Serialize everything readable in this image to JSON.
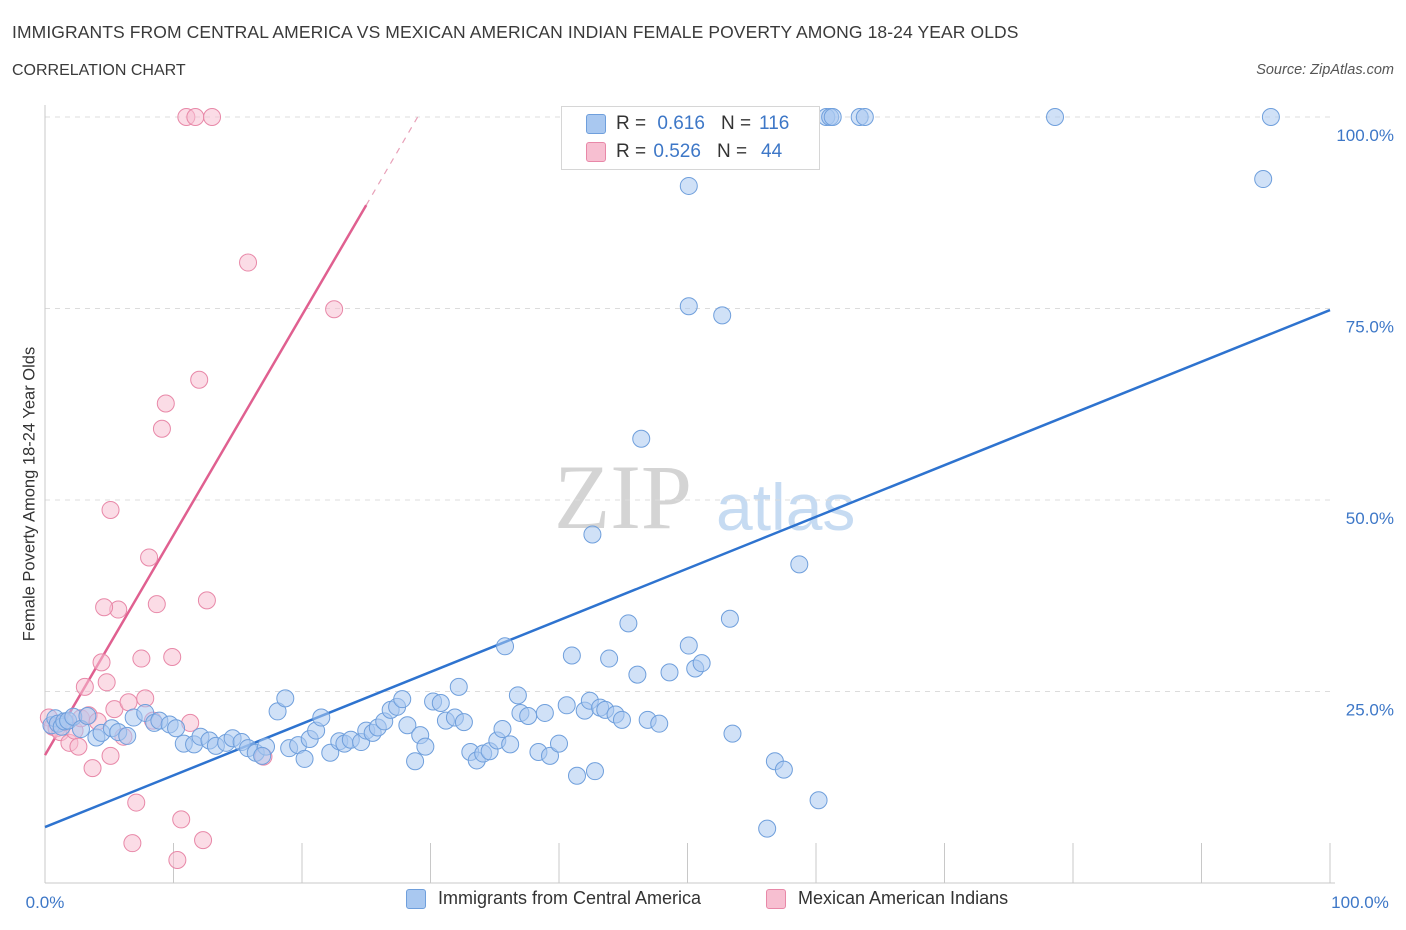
{
  "header": {
    "title": "IMMIGRANTS FROM CENTRAL AMERICA VS MEXICAN AMERICAN INDIAN FEMALE POVERTY AMONG 18-24 YEAR OLDS",
    "subtitle": "CORRELATION CHART",
    "source": "Source: ZipAtlas.com"
  },
  "watermark": {
    "zip": "ZIP",
    "atlas": "atlas"
  },
  "legend": {
    "rows": [
      {
        "r_label": "R =",
        "r_value": "0.616",
        "n_label": "N =",
        "n_value": "116",
        "color": "#a9c8f0",
        "border": "#6f9fdc"
      },
      {
        "r_label": "R =",
        "r_value": "0.526",
        "n_label": "N =",
        "n_value": "44",
        "color": "#f7bfd1",
        "border": "#e888a8"
      }
    ]
  },
  "bottom_legend": {
    "series1": "Immigrants from Central America",
    "series2": "Mexican American Indians"
  },
  "chart_data": {
    "type": "scatter",
    "title": "IMMIGRANTS FROM CENTRAL AMERICA VS MEXICAN AMERICAN INDIAN FEMALE POVERTY AMONG 18-24 YEAR OLDS",
    "xlabel": "",
    "ylabel": "Female Poverty Among 18-24 Year Olds",
    "xlim": [
      0,
      100
    ],
    "ylim": [
      0,
      100
    ],
    "x_tick_labels": [
      "0.0%",
      "100.0%"
    ],
    "y_tick_labels": [
      {
        "value": 25,
        "label": "25.0%"
      },
      {
        "value": 50,
        "label": "50.0%"
      },
      {
        "value": 75,
        "label": "75.0%"
      },
      {
        "value": 100,
        "label": "100.0%"
      }
    ],
    "grid": true,
    "series": [
      {
        "name": "Immigrants from Central America",
        "color": "#6f9fdc",
        "fill": "#a9c8f0",
        "trendline": {
          "x0": 0,
          "y0": 7.3,
          "x1": 100,
          "y1": 74.8,
          "color": "#2e73cf"
        },
        "points": [
          [
            0.5,
            20.6
          ],
          [
            0.8,
            21.5
          ],
          [
            1.0,
            20.8
          ],
          [
            1.3,
            20.4
          ],
          [
            1.5,
            21.1
          ],
          [
            1.8,
            21.2
          ],
          [
            2.2,
            21.7
          ],
          [
            2.8,
            20.1
          ],
          [
            3.3,
            21.8
          ],
          [
            4.0,
            19.0
          ],
          [
            4.4,
            19.6
          ],
          [
            5.2,
            20.2
          ],
          [
            5.7,
            19.7
          ],
          [
            6.4,
            19.2
          ],
          [
            6.9,
            21.6
          ],
          [
            7.8,
            22.2
          ],
          [
            8.5,
            20.9
          ],
          [
            8.9,
            21.2
          ],
          [
            9.7,
            20.7
          ],
          [
            10.2,
            20.2
          ],
          [
            10.8,
            18.2
          ],
          [
            11.6,
            18.1
          ],
          [
            12.1,
            19.1
          ],
          [
            12.8,
            18.6
          ],
          [
            13.3,
            17.9
          ],
          [
            14.1,
            18.3
          ],
          [
            14.6,
            18.9
          ],
          [
            15.3,
            18.4
          ],
          [
            15.8,
            17.6
          ],
          [
            16.4,
            17.0
          ],
          [
            17.2,
            17.8
          ],
          [
            16.9,
            16.6
          ],
          [
            18.1,
            22.4
          ],
          [
            18.7,
            24.1
          ],
          [
            19.0,
            17.6
          ],
          [
            19.7,
            18.0
          ],
          [
            20.2,
            16.2
          ],
          [
            20.6,
            18.8
          ],
          [
            21.1,
            19.9
          ],
          [
            21.5,
            21.6
          ],
          [
            22.2,
            17.0
          ],
          [
            22.9,
            18.5
          ],
          [
            23.3,
            18.2
          ],
          [
            23.8,
            18.7
          ],
          [
            24.6,
            18.4
          ],
          [
            25.0,
            19.9
          ],
          [
            25.5,
            19.6
          ],
          [
            25.9,
            20.3
          ],
          [
            26.4,
            21.1
          ],
          [
            26.9,
            22.6
          ],
          [
            27.4,
            23.0
          ],
          [
            27.8,
            24.0
          ],
          [
            28.2,
            20.6
          ],
          [
            28.8,
            15.9
          ],
          [
            29.2,
            19.3
          ],
          [
            29.6,
            17.8
          ],
          [
            30.2,
            23.7
          ],
          [
            30.8,
            23.5
          ],
          [
            31.2,
            21.2
          ],
          [
            31.9,
            21.6
          ],
          [
            32.2,
            25.6
          ],
          [
            32.6,
            21.0
          ],
          [
            33.1,
            17.1
          ],
          [
            33.6,
            16.0
          ],
          [
            34.1,
            16.9
          ],
          [
            34.6,
            17.2
          ],
          [
            35.2,
            18.6
          ],
          [
            35.6,
            20.1
          ],
          [
            36.2,
            18.1
          ],
          [
            36.8,
            24.5
          ],
          [
            37.0,
            22.2
          ],
          [
            35.8,
            30.9
          ],
          [
            37.6,
            21.8
          ],
          [
            38.4,
            17.1
          ],
          [
            38.9,
            22.2
          ],
          [
            39.3,
            16.6
          ],
          [
            40.0,
            18.2
          ],
          [
            40.6,
            23.2
          ],
          [
            41.0,
            29.7
          ],
          [
            41.4,
            14.0
          ],
          [
            42.0,
            22.5
          ],
          [
            42.4,
            23.8
          ],
          [
            42.8,
            14.6
          ],
          [
            43.2,
            22.9
          ],
          [
            43.6,
            22.6
          ],
          [
            43.9,
            29.3
          ],
          [
            44.4,
            22.0
          ],
          [
            44.9,
            21.3
          ],
          [
            45.4,
            33.9
          ],
          [
            46.1,
            27.2
          ],
          [
            46.9,
            21.3
          ],
          [
            47.8,
            20.8
          ],
          [
            48.6,
            27.5
          ],
          [
            50.1,
            31.0
          ],
          [
            50.6,
            28.0
          ],
          [
            51.1,
            28.7
          ],
          [
            53.3,
            34.5
          ],
          [
            53.5,
            19.5
          ],
          [
            56.2,
            7.1
          ],
          [
            56.8,
            15.9
          ],
          [
            57.5,
            14.8
          ],
          [
            58.7,
            41.6
          ],
          [
            60.2,
            10.8
          ],
          [
            50.1,
            75.3
          ],
          [
            52.7,
            74.1
          ],
          [
            46.4,
            58.0
          ],
          [
            42.6,
            45.5
          ],
          [
            50.1,
            91.0
          ],
          [
            60.8,
            100.0
          ],
          [
            61.1,
            100.0
          ],
          [
            63.4,
            100.0
          ],
          [
            61.3,
            100.0
          ],
          [
            78.6,
            100.0
          ],
          [
            95.4,
            100.0
          ],
          [
            94.8,
            91.9
          ],
          [
            63.8,
            100.0
          ]
        ]
      },
      {
        "name": "Mexican American Indians",
        "color": "#e888a8",
        "fill": "#f7bfd1",
        "trendline": {
          "x0": 0,
          "y0": 16.7,
          "x1": 25,
          "y1": 88.5,
          "dash_to": {
            "x": 29,
            "y": 100
          },
          "color": "#e06090"
        },
        "points": [
          [
            0.3,
            21.6
          ],
          [
            0.6,
            20.4
          ],
          [
            0.9,
            20.2
          ],
          [
            1.2,
            19.7
          ],
          [
            1.6,
            21.0
          ],
          [
            1.9,
            18.3
          ],
          [
            2.3,
            19.9
          ],
          [
            2.6,
            17.8
          ],
          [
            2.8,
            21.5
          ],
          [
            3.1,
            25.6
          ],
          [
            3.4,
            21.9
          ],
          [
            3.7,
            15.0
          ],
          [
            4.1,
            21.1
          ],
          [
            4.4,
            28.8
          ],
          [
            4.8,
            26.2
          ],
          [
            5.1,
            16.6
          ],
          [
            5.4,
            22.7
          ],
          [
            5.7,
            35.7
          ],
          [
            6.1,
            19.1
          ],
          [
            6.5,
            23.6
          ],
          [
            6.8,
            5.2
          ],
          [
            7.1,
            10.5
          ],
          [
            7.5,
            29.3
          ],
          [
            7.8,
            24.1
          ],
          [
            8.1,
            42.5
          ],
          [
            8.4,
            21.2
          ],
          [
            8.7,
            36.4
          ],
          [
            9.1,
            59.3
          ],
          [
            9.4,
            62.6
          ],
          [
            9.9,
            29.5
          ],
          [
            10.3,
            3.0
          ],
          [
            10.6,
            8.3
          ],
          [
            11.0,
            100.0
          ],
          [
            11.3,
            20.9
          ],
          [
            11.7,
            100.0
          ],
          [
            12.0,
            65.7
          ],
          [
            12.3,
            5.6
          ],
          [
            12.6,
            36.9
          ],
          [
            13.0,
            100.0
          ],
          [
            15.8,
            81.0
          ],
          [
            17.0,
            16.5
          ],
          [
            22.5,
            74.9
          ],
          [
            4.6,
            36.0
          ],
          [
            5.1,
            48.7
          ]
        ]
      }
    ]
  }
}
